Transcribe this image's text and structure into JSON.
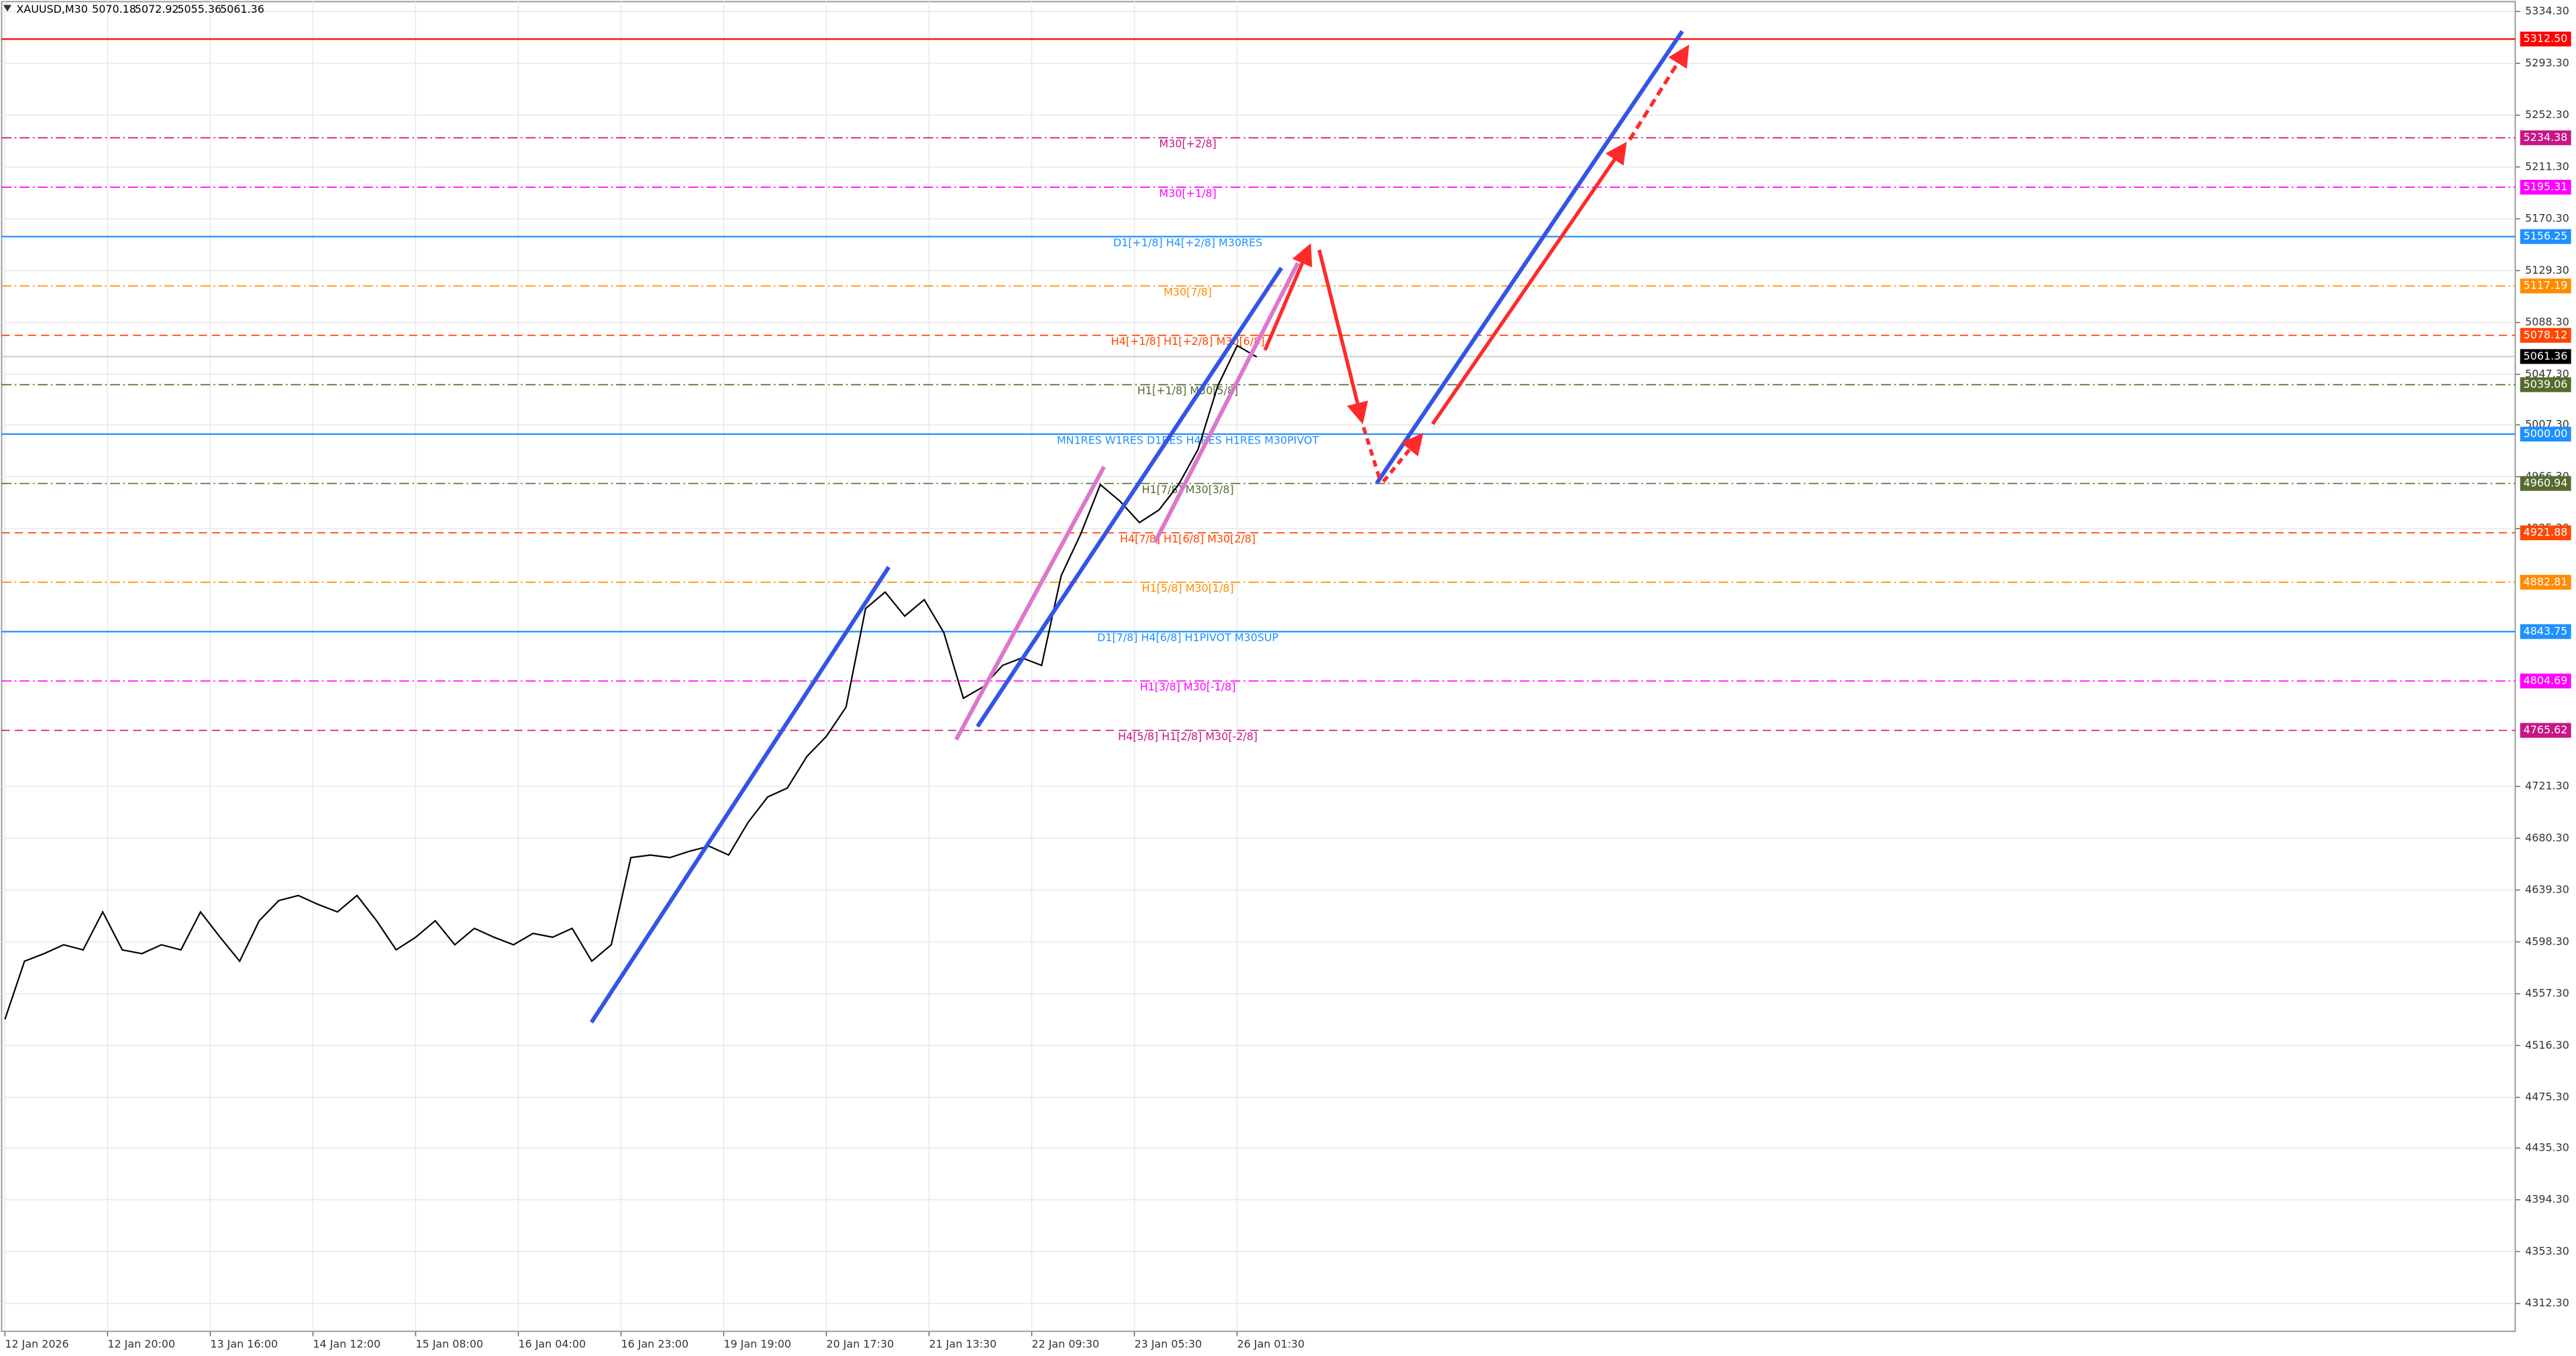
{
  "chart_data": {
    "type": "line",
    "symbol": "XAUUSD,M30",
    "ohlc": [
      5070.18,
      5072.92,
      5055.36,
      5061.36
    ],
    "ylim": [
      4290.2,
      5343.4
    ],
    "yticks": [
      {
        "value": 5334.3,
        "label": "5334.30"
      },
      {
        "value": 5293.3,
        "label": "5293.30"
      },
      {
        "value": 5252.3,
        "label": "5252.30"
      },
      {
        "value": 5211.3,
        "label": "5211.30"
      },
      {
        "value": 5170.3,
        "label": "5170.30"
      },
      {
        "value": 5129.3,
        "label": "5129.30"
      },
      {
        "value": 5088.3,
        "label": "5088.30"
      },
      {
        "value": 5047.3,
        "label": "5047.30"
      },
      {
        "value": 5007.3,
        "label": "5007.30"
      },
      {
        "value": 4966.3,
        "label": "4966.30"
      },
      {
        "value": 4925.3,
        "label": "4925.30"
      },
      {
        "value": 4721.3,
        "label": "4721.30"
      },
      {
        "value": 4680.3,
        "label": "4680.30"
      },
      {
        "value": 4639.3,
        "label": "4639.30"
      },
      {
        "value": 4598.3,
        "label": "4598.30"
      },
      {
        "value": 4557.3,
        "label": "4557.30"
      },
      {
        "value": 4516.3,
        "label": "4516.30"
      },
      {
        "value": 4475.3,
        "label": "4475.30"
      },
      {
        "value": 4435.3,
        "label": "4435.30"
      },
      {
        "value": 4394.3,
        "label": "4394.30"
      },
      {
        "value": 4353.3,
        "label": "4353.30"
      },
      {
        "value": 4312.3,
        "label": "4312.30"
      }
    ],
    "categories": [
      "12 Jan 2026",
      "12 Jan 20:00",
      "13 Jan 16:00",
      "14 Jan 12:00",
      "15 Jan 08:00",
      "16 Jan 04:00",
      "16 Jan 23:00",
      "19 Jan 19:00",
      "20 Jan 17:30",
      "21 Jan 13:30",
      "22 Jan 09:30",
      "23 Jan 05:30",
      "26 Jan 01:30"
    ],
    "grid": true,
    "price": {
      "color": "#000000",
      "values": [
        4537,
        4583,
        4589,
        4596,
        4592,
        4622,
        4592,
        4589,
        4596,
        4592,
        4622,
        4602,
        4583,
        4615,
        4631,
        4635,
        4628,
        4622,
        4635,
        4615,
        4592,
        4602,
        4615,
        4596,
        4609,
        4602,
        4596,
        4605,
        4602,
        4609,
        4583,
        4596,
        4665,
        4667,
        4665,
        4670,
        4674,
        4667,
        4693,
        4713,
        4720,
        4745,
        4761,
        4784,
        4862,
        4875,
        4856,
        4869,
        4843,
        4791,
        4800,
        4817,
        4823,
        4817,
        4888,
        4921,
        4960,
        4947,
        4930,
        4940,
        4960,
        4988,
        5038,
        5070,
        5061
      ]
    },
    "levels": [
      {
        "value": 5312.5,
        "value_label": "5312.50",
        "color": "#ff0000",
        "style": "solid"
      },
      {
        "name": "M30[+2/8]",
        "value": 5234.38,
        "value_label": "5234.38",
        "color": "#c71585",
        "style": "dashdot"
      },
      {
        "name": "M30[+1/8]",
        "value": 5195.31,
        "value_label": "5195.31",
        "color": "#ff00ff",
        "style": "dashdot"
      },
      {
        "name": "D1[+1/8] H4[+2/8] M30RES",
        "value": 5156.25,
        "value_label": "5156.25",
        "color": "#1e90ff",
        "style": "solid"
      },
      {
        "name": "M30[7/8]",
        "value": 5117.19,
        "value_label": "5117.19",
        "color": "#ff8c00",
        "style": "dashdot"
      },
      {
        "name": "H4[+1/8] H1[+2/8] M30[6/8]",
        "value": 5078.12,
        "value_label": "5078.12",
        "color": "#ff4500",
        "style": "dash"
      },
      {
        "value": 5061.36,
        "value_label": "5061.36",
        "color": "#000000",
        "style": "current"
      },
      {
        "name": "H1[+1/8] M30[5/8]",
        "value": 5039.06,
        "value_label": "5039.06",
        "color": "#556b2f",
        "style": "dashdot"
      },
      {
        "name": "MN1RES W1RES D1RES H4RES H1RES M30PIVOT",
        "value": 5000,
        "value_label": "5000.00",
        "color": "#1e90ff",
        "style": "solid"
      },
      {
        "name": "H1[7/8] M30[3/8]",
        "value": 4960.94,
        "value_label": "4960.94",
        "color": "#556b2f",
        "style": "dashdot"
      },
      {
        "name": "H4[7/8] H1[6/8] M30[2/8]",
        "value": 4921.88,
        "value_label": "4921.88",
        "color": "#ff4500",
        "style": "dash"
      },
      {
        "name": "H1[5/8] M30[1/8]",
        "value": 4882.81,
        "value_label": "4882.81",
        "color": "#ff8c00",
        "style": "dashdot"
      },
      {
        "name": "D1[7/8] H4[6/8] H1PIVOT M30SUP",
        "value": 4843.75,
        "value_label": "4843.75",
        "color": "#1e90ff",
        "style": "solid"
      },
      {
        "name": "H1[3/8] M30[-1/8]",
        "value": 4804.69,
        "value_label": "4804.69",
        "color": "#ff00ff",
        "style": "dashdot"
      },
      {
        "name": "H4[5/8] H1[2/8] M30[-2/8]",
        "value": 4765.62,
        "value_label": "4765.62",
        "color": "#c71585",
        "style": "dash"
      }
    ]
  }
}
